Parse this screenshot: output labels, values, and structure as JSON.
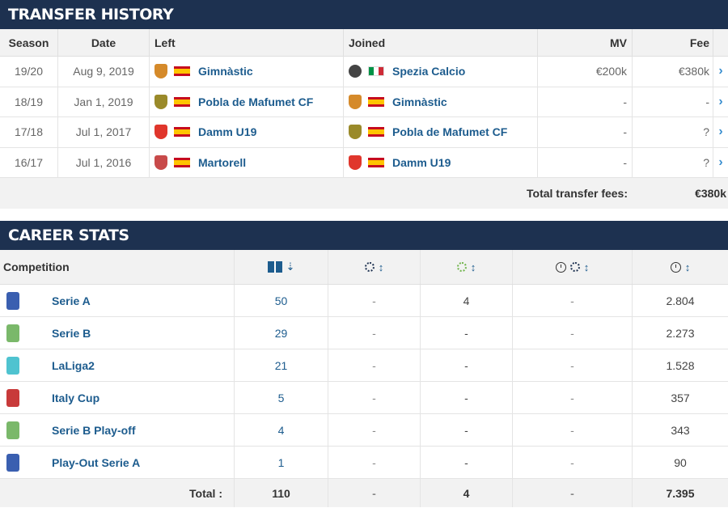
{
  "transfer_history": {
    "title": "TRANSFER HISTORY",
    "columns": {
      "season": "Season",
      "date": "Date",
      "left": "Left",
      "joined": "Joined",
      "mv": "MV",
      "fee": "Fee"
    },
    "rows": [
      {
        "season": "19/20",
        "date": "Aug 9, 2019",
        "left": "Gimnàstic",
        "left_flag": "spain-flag-icon",
        "left_crest": "#d58a2a",
        "joined": "Spezia Calcio",
        "joined_flag": "italy-flag-icon",
        "joined_crest": "#444444",
        "mv": "€200k",
        "fee": "€380k"
      },
      {
        "season": "18/19",
        "date": "Jan 1, 2019",
        "left": "Pobla de Mafumet CF",
        "left_flag": "spain-flag-icon",
        "left_crest": "#9a8a2a",
        "joined": "Gimnàstic",
        "joined_flag": "spain-flag-icon",
        "joined_crest": "#d58a2a",
        "mv": "-",
        "fee": "-"
      },
      {
        "season": "17/18",
        "date": "Jul 1, 2017",
        "left": "Damm U19",
        "left_flag": "spain-flag-icon",
        "left_crest": "#e0362c",
        "joined": "Pobla de Mafumet CF",
        "joined_flag": "spain-flag-icon",
        "joined_crest": "#9a8a2a",
        "mv": "-",
        "fee": "?"
      },
      {
        "season": "16/17",
        "date": "Jul 1, 2016",
        "left": "Martorell",
        "left_flag": "spain-flag-icon",
        "left_crest": "#c84a4a",
        "joined": "Damm U19",
        "joined_flag": "spain-flag-icon",
        "joined_crest": "#e0362c",
        "mv": "-",
        "fee": "?"
      }
    ],
    "total_label": "Total transfer fees:",
    "total_value": "€380k",
    "arrow_glyph": "›"
  },
  "career_stats": {
    "title": "CAREER STATS",
    "columns": {
      "competition": "Competition",
      "appearances_icon": "pitch-icon",
      "goals_icon": "ball-icon",
      "assists_icon": "green-ball-icon",
      "minutes_per_goal_icon": "clock-ball-icon",
      "minutes_icon": "clock-icon",
      "sort_desc": "⇣",
      "sort_both": "↕"
    },
    "rows": [
      {
        "competition": "Serie A",
        "logo_color": "#3a5fb0",
        "apps": "50",
        "goals": "-",
        "assists": "4",
        "mpg": "-",
        "minutes": "2.804"
      },
      {
        "competition": "Serie B",
        "logo_color": "#7ab86a",
        "apps": "29",
        "goals": "-",
        "assists": "-",
        "mpg": "-",
        "minutes": "2.273"
      },
      {
        "competition": "LaLiga2",
        "logo_color": "#4fc3d0",
        "apps": "21",
        "goals": "-",
        "assists": "-",
        "mpg": "-",
        "minutes": "1.528"
      },
      {
        "competition": "Italy Cup",
        "logo_color": "#c83a3a",
        "apps": "5",
        "goals": "-",
        "assists": "-",
        "mpg": "-",
        "minutes": "357"
      },
      {
        "competition": "Serie B Play-off",
        "logo_color": "#7ab86a",
        "apps": "4",
        "goals": "-",
        "assists": "-",
        "mpg": "-",
        "minutes": "343"
      },
      {
        "competition": "Play-Out Serie A",
        "logo_color": "#3a5fb0",
        "apps": "1",
        "goals": "-",
        "assists": "-",
        "mpg": "-",
        "minutes": "90"
      }
    ],
    "total": {
      "label": "Total :",
      "apps": "110",
      "goals": "-",
      "assists": "4",
      "mpg": "-",
      "minutes": "7.395"
    }
  },
  "colors": {
    "header_bg": "#1d3150",
    "link": "#1d5c8e",
    "arrow": "#3a8fd0"
  }
}
